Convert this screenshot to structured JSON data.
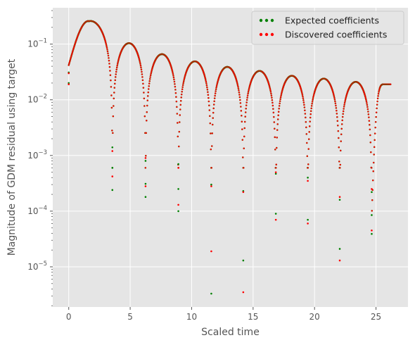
{
  "chart_data": {
    "type": "scatter",
    "xlabel": "Scaled time",
    "ylabel": "Magnitude of GDM residual using target",
    "xlim": [
      -1.3,
      27.6
    ],
    "ylim": [
      1.9e-06,
      0.45
    ],
    "yscale": "log",
    "grid": true,
    "legend_position": "top-right",
    "x_ticks": [
      0,
      5,
      10,
      15,
      20,
      25
    ],
    "x_tick_labels": [
      "0",
      "5",
      "10",
      "15",
      "20",
      "25"
    ],
    "y_ticks": [
      {
        "value": 1e-05,
        "base": "10",
        "exp": "−5"
      },
      {
        "value": 0.0001,
        "base": "10",
        "exp": "−4"
      },
      {
        "value": 0.001,
        "base": "10",
        "exp": "−3"
      },
      {
        "value": 0.01,
        "base": "10",
        "exp": "−2"
      },
      {
        "value": 0.1,
        "base": "10",
        "exp": "−1"
      }
    ],
    "colors": {
      "background": "#E5E5E5",
      "grid": "#FFFFFF",
      "expected": "#008000",
      "discovered": "#FF0000"
    },
    "envelope": {
      "description_points": [
        {
          "x": 0.0,
          "y": 0.042
        },
        {
          "x": 1.6,
          "y": 0.26
        },
        {
          "x": 4.8,
          "y": 0.104
        },
        {
          "x": 7.5,
          "y": 0.066
        },
        {
          "x": 10.2,
          "y": 0.049
        },
        {
          "x": 12.9,
          "y": 0.039
        },
        {
          "x": 15.5,
          "y": 0.033
        },
        {
          "x": 18.1,
          "y": 0.027
        },
        {
          "x": 20.7,
          "y": 0.024
        },
        {
          "x": 23.3,
          "y": 0.021
        },
        {
          "x": 26.0,
          "y": 0.019
        }
      ],
      "zeros": [
        3.55,
        6.25,
        8.92,
        11.6,
        14.2,
        16.85,
        19.45,
        22.05,
        24.65
      ],
      "x_end": 26.2,
      "plateau_start": 25.7,
      "plateau_y": 0.019
    },
    "series": [
      {
        "name": "Expected coefficients",
        "points": [
          {
            "x": 0.0,
            "y": 0.031
          },
          {
            "x": 0.0,
            "y": 0.02
          },
          {
            "x": 3.55,
            "y": 0.0014
          },
          {
            "x": 3.55,
            "y": 0.0006
          },
          {
            "x": 3.55,
            "y": 0.00024
          },
          {
            "x": 6.25,
            "y": 0.0008
          },
          {
            "x": 6.25,
            "y": 0.00031
          },
          {
            "x": 6.25,
            "y": 0.00018
          },
          {
            "x": 8.92,
            "y": 0.0007
          },
          {
            "x": 8.92,
            "y": 0.00025
          },
          {
            "x": 8.92,
            "y": 0.0001
          },
          {
            "x": 11.6,
            "y": 0.0003
          },
          {
            "x": 11.6,
            "y": 3.3e-06
          },
          {
            "x": 14.2,
            "y": 0.00023
          },
          {
            "x": 14.2,
            "y": 1.3e-05
          },
          {
            "x": 16.85,
            "y": 0.00047
          },
          {
            "x": 16.85,
            "y": 9e-05
          },
          {
            "x": 19.45,
            "y": 0.0004
          },
          {
            "x": 19.45,
            "y": 7e-05
          },
          {
            "x": 22.05,
            "y": 0.00016
          },
          {
            "x": 22.05,
            "y": 2.1e-05
          },
          {
            "x": 24.65,
            "y": 0.00022
          },
          {
            "x": 24.65,
            "y": 8.5e-05
          },
          {
            "x": 24.65,
            "y": 3.9e-05
          }
        ]
      },
      {
        "name": "Discovered coefficients",
        "points": [
          {
            "x": 0.0,
            "y": 0.03
          },
          {
            "x": 0.0,
            "y": 0.019
          },
          {
            "x": 3.55,
            "y": 0.0012
          },
          {
            "x": 3.55,
            "y": 0.00042
          },
          {
            "x": 6.25,
            "y": 0.0009
          },
          {
            "x": 6.25,
            "y": 0.00028
          },
          {
            "x": 8.92,
            "y": 0.0006
          },
          {
            "x": 8.92,
            "y": 0.00013
          },
          {
            "x": 11.6,
            "y": 0.00028
          },
          {
            "x": 11.6,
            "y": 1.9e-05
          },
          {
            "x": 14.2,
            "y": 0.00022
          },
          {
            "x": 14.2,
            "y": 3.5e-06
          },
          {
            "x": 16.85,
            "y": 0.0005
          },
          {
            "x": 16.85,
            "y": 7e-05
          },
          {
            "x": 19.45,
            "y": 0.00035
          },
          {
            "x": 19.45,
            "y": 6e-05
          },
          {
            "x": 22.05,
            "y": 0.00018
          },
          {
            "x": 22.05,
            "y": 1.3e-05
          },
          {
            "x": 24.65,
            "y": 0.00025
          },
          {
            "x": 24.65,
            "y": 4.5e-05
          }
        ]
      }
    ]
  }
}
